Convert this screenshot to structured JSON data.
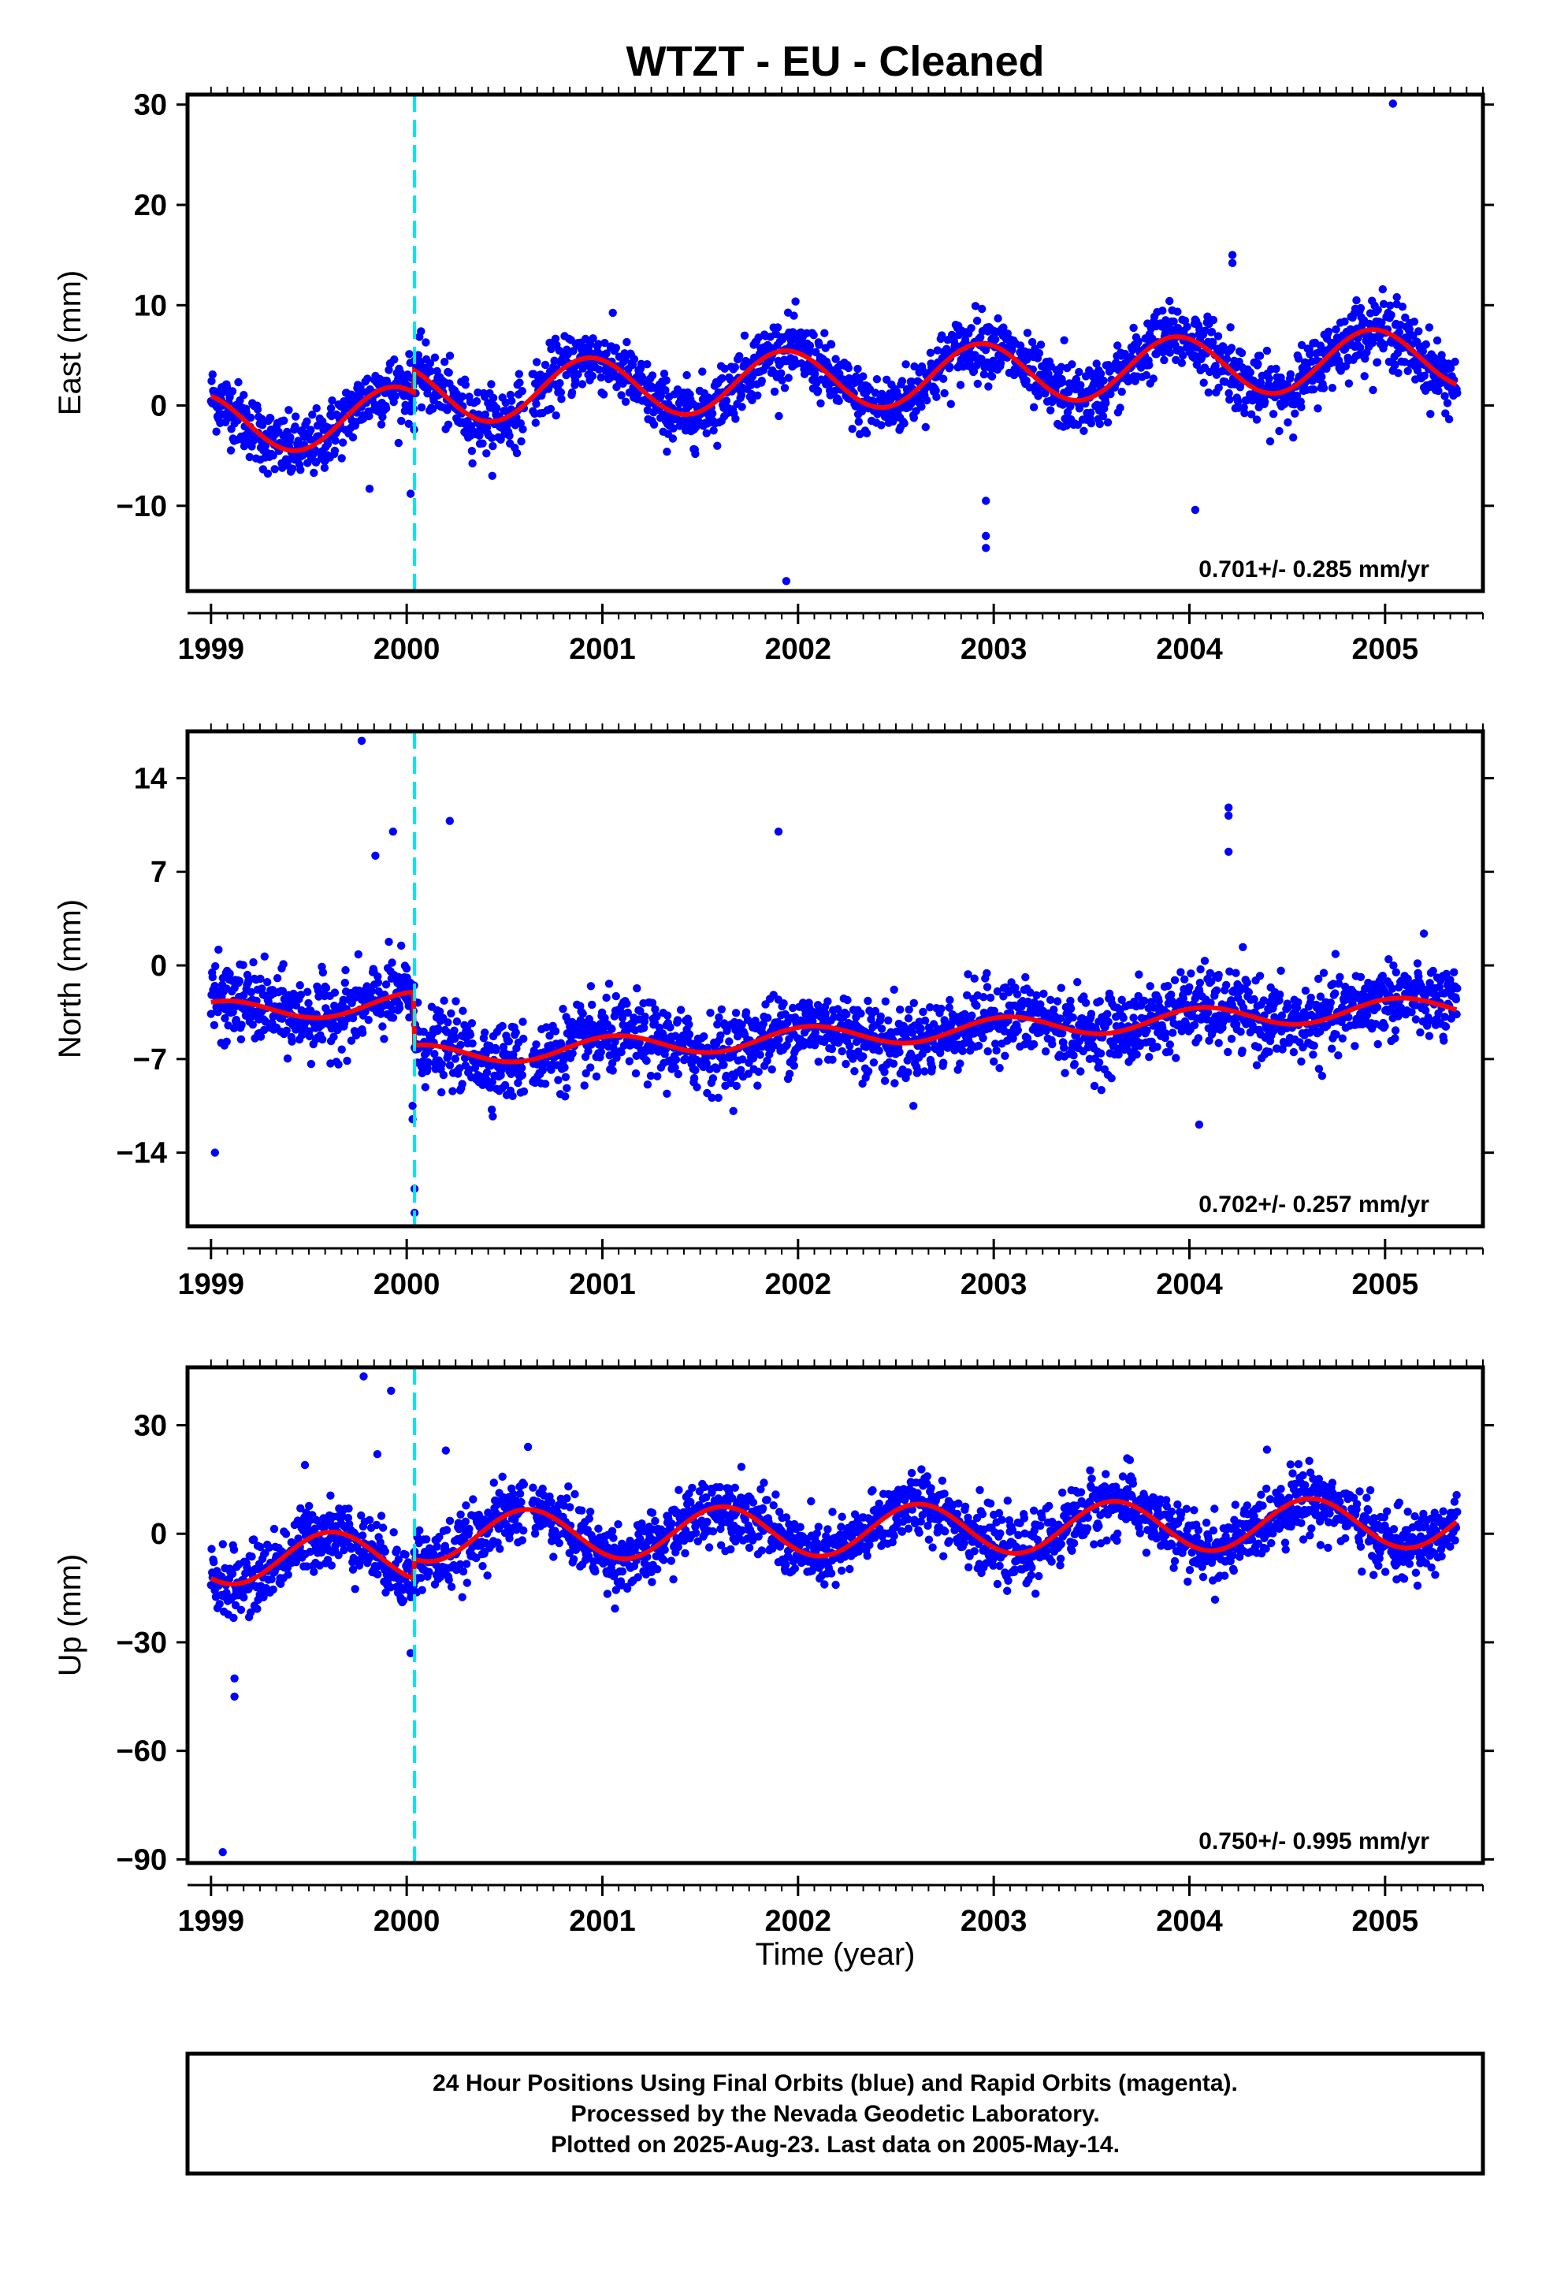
{
  "title": "WTZT  - EU - Cleaned",
  "footer": {
    "line1": "24 Hour Positions Using Final Orbits (blue) and Rapid Orbits (magenta).",
    "line2": "Processed by the Nevada Geodetic Laboratory.",
    "line3": "Plotted on 2025-Aug-23. Last data on 2005-May-14."
  },
  "colors": {
    "points": "#0000ff",
    "model": "#ff0000",
    "break_line": "#00e5ee",
    "frame": "#000000"
  },
  "chart_data": [
    {
      "type": "scatter",
      "ylabel": "East (mm)",
      "xlabel": "",
      "xlim": [
        1998.88,
        2005.5
      ],
      "ylim": [
        -18.5,
        31
      ],
      "x_ticks": [
        1999,
        2000,
        2001,
        2002,
        2003,
        2004,
        2005
      ],
      "x_tick_labels": [
        "1999",
        "2000",
        "2001",
        "2002",
        "2003",
        "2004",
        "2005"
      ],
      "y_ticks": [
        -10,
        0,
        10,
        20,
        30
      ],
      "y_tick_labels": [
        "−10",
        "0",
        "10",
        "20",
        "30"
      ],
      "rate": "0.701+/- 0.285 mm/yr",
      "break_epoch": 2000.04,
      "model": {
        "trend": 0.701,
        "offset": -1.8,
        "amp": 3.0,
        "phase": 2.0,
        "step": 2.2,
        "noise": 1.6
      },
      "outliers": [
        [
          2005.04,
          30.1
        ],
        [
          2004.22,
          15.0
        ],
        [
          2004.22,
          14.2
        ],
        [
          2005.06,
          10.8
        ],
        [
          2005.06,
          10.1
        ],
        [
          2002.96,
          -9.5
        ],
        [
          2002.96,
          -13.0
        ],
        [
          2002.96,
          -14.2
        ],
        [
          2001.94,
          -17.5
        ],
        [
          2004.03,
          -10.4
        ],
        [
          2000.02,
          -8.8
        ],
        [
          1999.81,
          -8.3
        ],
        [
          2004.21,
          7.8
        ],
        [
          2003.36,
          6.5
        ]
      ],
      "gap": [
        2000.6,
        2000.64
      ]
    },
    {
      "type": "scatter",
      "ylabel": "North (mm)",
      "xlabel": "",
      "xlim": [
        1998.88,
        2005.5
      ],
      "ylim": [
        -19.5,
        17.5
      ],
      "x_ticks": [
        1999,
        2000,
        2001,
        2002,
        2003,
        2004,
        2005
      ],
      "x_tick_labels": [
        "1999",
        "2000",
        "2001",
        "2002",
        "2003",
        "2004",
        "2005"
      ],
      "y_ticks": [
        -14,
        -7,
        0,
        7,
        14
      ],
      "y_tick_labels": [
        "−14",
        "−7",
        "0",
        "7",
        "14"
      ],
      "rate": "0.702+/- 0.257 mm/yr",
      "break_epoch": 2000.04,
      "model": {
        "trend": 0.702,
        "offset": -3.5,
        "amp": 0.8,
        "phase": 1.2,
        "step": -4.0,
        "noise": 1.4
      },
      "outliers": [
        [
          1999.77,
          16.8
        ],
        [
          2000.22,
          10.8
        ],
        [
          1999.93,
          10.0
        ],
        [
          1999.84,
          8.2
        ],
        [
          2001.9,
          10.0
        ],
        [
          2004.2,
          11.8
        ],
        [
          2004.2,
          11.2
        ],
        [
          2004.2,
          8.5
        ],
        [
          1999.02,
          -14.0
        ],
        [
          1999.08,
          -5.7
        ],
        [
          2000.03,
          -10.5
        ],
        [
          2000.03,
          -11.5
        ],
        [
          2000.04,
          -16.7
        ],
        [
          2000.04,
          -18.5
        ],
        [
          2004.05,
          -11.9
        ],
        [
          2004.15,
          -5.8
        ],
        [
          2001.98,
          -7.5
        ],
        [
          2000.97,
          -8.3
        ]
      ],
      "gap": [
        2000.6,
        2000.64
      ]
    },
    {
      "type": "scatter",
      "ylabel": "Up (mm)",
      "xlabel": "Time (year)",
      "xlim": [
        1998.88,
        2005.5
      ],
      "ylim": [
        -91,
        46
      ],
      "x_ticks": [
        1999,
        2000,
        2001,
        2002,
        2003,
        2004,
        2005
      ],
      "x_tick_labels": [
        "1999",
        "2000",
        "2001",
        "2002",
        "2003",
        "2004",
        "2005"
      ],
      "y_ticks": [
        -90,
        -60,
        -30,
        0,
        30
      ],
      "y_tick_labels": [
        "−90",
        "−60",
        "−30",
        "0",
        "30"
      ],
      "rate": "0.750+/- 0.995 mm/yr",
      "break_epoch": 2000.04,
      "model": {
        "trend": 0.75,
        "offset": -7.0,
        "amp": 7.0,
        "phase": 4.0,
        "step": 5.5,
        "noise": 4.5
      },
      "outliers": [
        [
          1999.06,
          -88.0
        ],
        [
          1999.78,
          43.5
        ],
        [
          1999.92,
          39.5
        ],
        [
          1999.12,
          -40.0
        ],
        [
          1999.12,
          -45.0
        ],
        [
          2000.02,
          -33.0
        ],
        [
          1999.85,
          22.0
        ],
        [
          2000.2,
          23.0
        ],
        [
          2000.62,
          24.0
        ],
        [
          1999.48,
          19.0
        ]
      ],
      "gap": [
        2000.6,
        2000.64
      ]
    }
  ]
}
